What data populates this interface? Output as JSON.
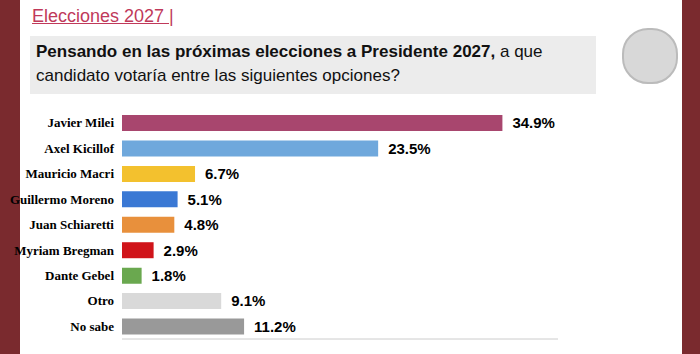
{
  "chart_data": {
    "type": "bar",
    "orientation": "horizontal",
    "title": "Elecciones 2027 |",
    "subtitle": "Pensando en las próximas elecciones a Presidente 2027, a que candidato votaría entre las siguientes opciones?",
    "categories": [
      "Javier Milei",
      "Axel Kicillof",
      "Mauricio Macri",
      "Guillermo Moreno",
      "Juan Schiaretti",
      "Myriam Bregman",
      "Dante Gebel",
      "Otro",
      "No sabe"
    ],
    "values": [
      34.9,
      23.5,
      6.7,
      5.1,
      4.8,
      2.9,
      1.8,
      9.1,
      11.2
    ],
    "value_labels": [
      "34.9%",
      "23.5%",
      "6.7%",
      "5.1%",
      "4.8%",
      "2.9%",
      "1.8%",
      "9.1%",
      "11.2%"
    ],
    "colors": [
      "#a8466e",
      "#6fa8dc",
      "#f3c12e",
      "#3a78d4",
      "#e8903c",
      "#d0141a",
      "#6aa84f",
      "#d9d9d9",
      "#999999"
    ],
    "xlim": [
      0,
      40
    ],
    "xticks": [],
    "data_labels": true,
    "tick_labels": "y",
    "grid": false
  }
}
